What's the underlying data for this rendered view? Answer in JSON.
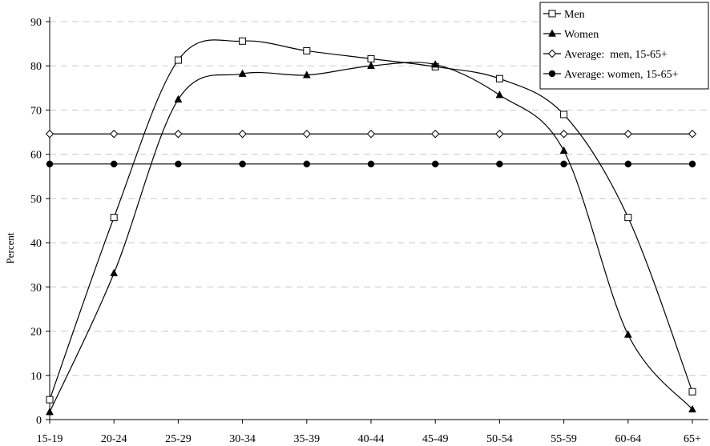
{
  "chart_data": {
    "type": "line",
    "title": "",
    "xlabel": "",
    "ylabel": "Percent",
    "ylim": [
      0,
      90
    ],
    "yticks": [
      "0",
      "10",
      "20",
      "30",
      "40",
      "50",
      "60",
      "70",
      "80",
      "90"
    ],
    "grid": "horizontal dashed",
    "legend_position": "top-right",
    "categories": [
      "15-19",
      "20-24",
      "25-29",
      "30-34",
      "35-39",
      "40-44",
      "45-49",
      "50-54",
      "55-59",
      "60-64",
      "65+"
    ],
    "series": [
      {
        "name": "Men",
        "marker": "square-open",
        "smooth": true,
        "values": [
          4.5,
          45.7,
          81.3,
          85.6,
          83.4,
          81.6,
          79.8,
          77.1,
          69.0,
          45.7,
          6.3
        ]
      },
      {
        "name": "Women",
        "marker": "triangle-filled",
        "smooth": true,
        "values": [
          1.7,
          33.1,
          72.4,
          78.2,
          77.9,
          80.0,
          80.3,
          73.4,
          60.8,
          19.2,
          2.3
        ]
      },
      {
        "name": "Average:  men, 15-65+",
        "marker": "diamond-open",
        "smooth": false,
        "values": [
          64.6,
          64.6,
          64.6,
          64.6,
          64.6,
          64.6,
          64.6,
          64.6,
          64.6,
          64.6,
          64.6
        ]
      },
      {
        "name": "Average: women, 15-65+",
        "marker": "circle-filled",
        "smooth": false,
        "values": [
          57.8,
          57.8,
          57.8,
          57.8,
          57.8,
          57.8,
          57.8,
          57.8,
          57.8,
          57.8,
          57.8
        ]
      }
    ]
  }
}
